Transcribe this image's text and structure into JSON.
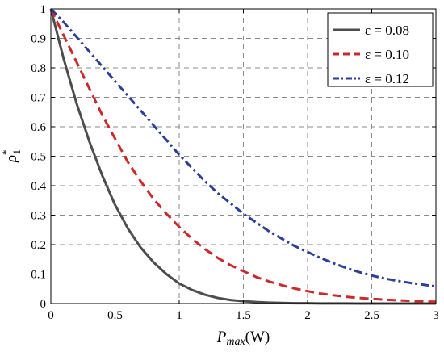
{
  "chart_data": {
    "type": "line",
    "xlabel": "P_max (W)",
    "xlabel_parts": {
      "main": "P",
      "sub": "max",
      "unit": "(W)"
    },
    "ylabel_parts": {
      "main": "ρ",
      "sup": "*",
      "sub": "1"
    },
    "xlim": [
      0,
      3
    ],
    "ylim": [
      0,
      1
    ],
    "xticks": [
      "0",
      "0.5",
      "1",
      "1.5",
      "2",
      "2.5",
      "3"
    ],
    "yticks": [
      "0",
      "0.1",
      "0.2",
      "0.3",
      "0.4",
      "0.5",
      "0.6",
      "0.7",
      "0.8",
      "0.9",
      "1"
    ],
    "grid": true,
    "legend_position": "top-right",
    "x": [
      0,
      0.1,
      0.2,
      0.3,
      0.4,
      0.5,
      0.6,
      0.7,
      0.8,
      0.9,
      1.0,
      1.1,
      1.2,
      1.3,
      1.4,
      1.5,
      1.6,
      1.7,
      1.8,
      1.9,
      2.0,
      2.1,
      2.2,
      2.3,
      2.4,
      2.5,
      2.6,
      2.7,
      2.8,
      2.9,
      3.0
    ],
    "series": [
      {
        "name": "ε = 0.08",
        "color": "#4d4d4d",
        "dash": "solid",
        "values": [
          1.0,
          0.83,
          0.68,
          0.55,
          0.435,
          0.335,
          0.255,
          0.19,
          0.14,
          0.1,
          0.068,
          0.046,
          0.03,
          0.019,
          0.012,
          0.008,
          0.005,
          0.003,
          0.002,
          0.001,
          0.001,
          0.0005,
          0.0003,
          0.0002,
          0.0001,
          0.0001,
          0.0,
          0.0,
          0.0,
          0.0,
          0.0
        ]
      },
      {
        "name": "ε = 0.10",
        "color": "#cc2a2a",
        "dash": "dashed",
        "values": [
          1.0,
          0.91,
          0.82,
          0.73,
          0.64,
          0.56,
          0.48,
          0.415,
          0.355,
          0.305,
          0.26,
          0.22,
          0.185,
          0.155,
          0.13,
          0.11,
          0.09,
          0.075,
          0.062,
          0.051,
          0.042,
          0.034,
          0.028,
          0.023,
          0.019,
          0.016,
          0.013,
          0.011,
          0.009,
          0.007,
          0.006
        ]
      },
      {
        "name": "ε = 0.12",
        "color": "#2b3f99",
        "dash": "dashdot",
        "values": [
          1.0,
          0.955,
          0.905,
          0.855,
          0.805,
          0.755,
          0.705,
          0.655,
          0.605,
          0.555,
          0.505,
          0.46,
          0.415,
          0.375,
          0.34,
          0.305,
          0.275,
          0.245,
          0.22,
          0.195,
          0.175,
          0.155,
          0.137,
          0.121,
          0.107,
          0.095,
          0.085,
          0.077,
          0.07,
          0.064,
          0.058
        ]
      }
    ]
  }
}
